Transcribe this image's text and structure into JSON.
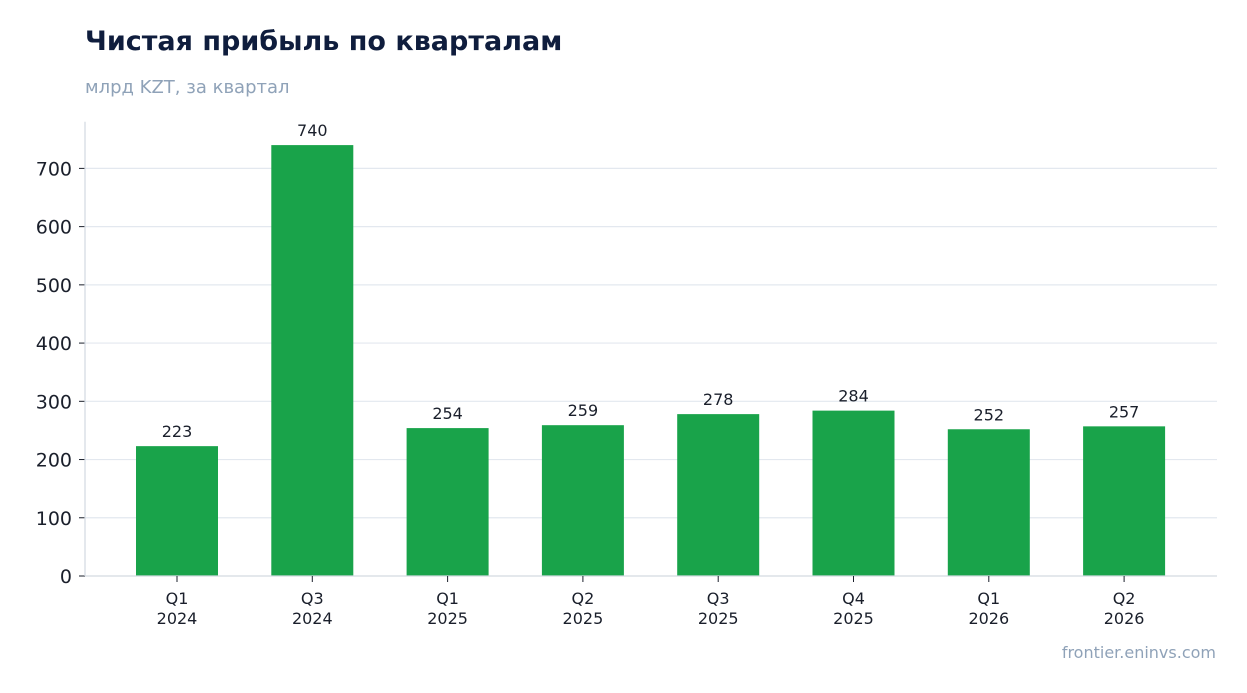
{
  "page": {
    "title": "Чистая прибыль по кварталам",
    "subtitle": "млрд KZT, за квартал",
    "watermark": "frontier.eninvs.com"
  },
  "colors": {
    "bar": "#19a34a",
    "grid": "#e3e8ef",
    "axis": "#d3d9e1",
    "text": "#1a1f2b",
    "title": "#0f1d3d",
    "muted": "#8fa2b8"
  },
  "chart_data": {
    "type": "bar",
    "title": "Чистая прибыль по кварталам",
    "subtitle": "млрд KZT, за квартал",
    "categories": [
      [
        "Q1",
        "2024"
      ],
      [
        "Q3",
        "2024"
      ],
      [
        "Q1",
        "2025"
      ],
      [
        "Q2",
        "2025"
      ],
      [
        "Q3",
        "2025"
      ],
      [
        "Q4",
        "2025"
      ],
      [
        "Q1",
        "2026"
      ],
      [
        "Q2",
        "2026"
      ]
    ],
    "values": [
      223,
      740,
      254,
      259,
      278,
      284,
      252,
      257
    ],
    "data_labels": [
      "223",
      "740",
      "254",
      "259",
      "278",
      "284",
      "252",
      "257"
    ],
    "ylim": [
      0,
      780
    ],
    "yticks": [
      0,
      100,
      200,
      300,
      400,
      500,
      600,
      700
    ],
    "grid": true,
    "xlabel": "",
    "ylabel": ""
  }
}
